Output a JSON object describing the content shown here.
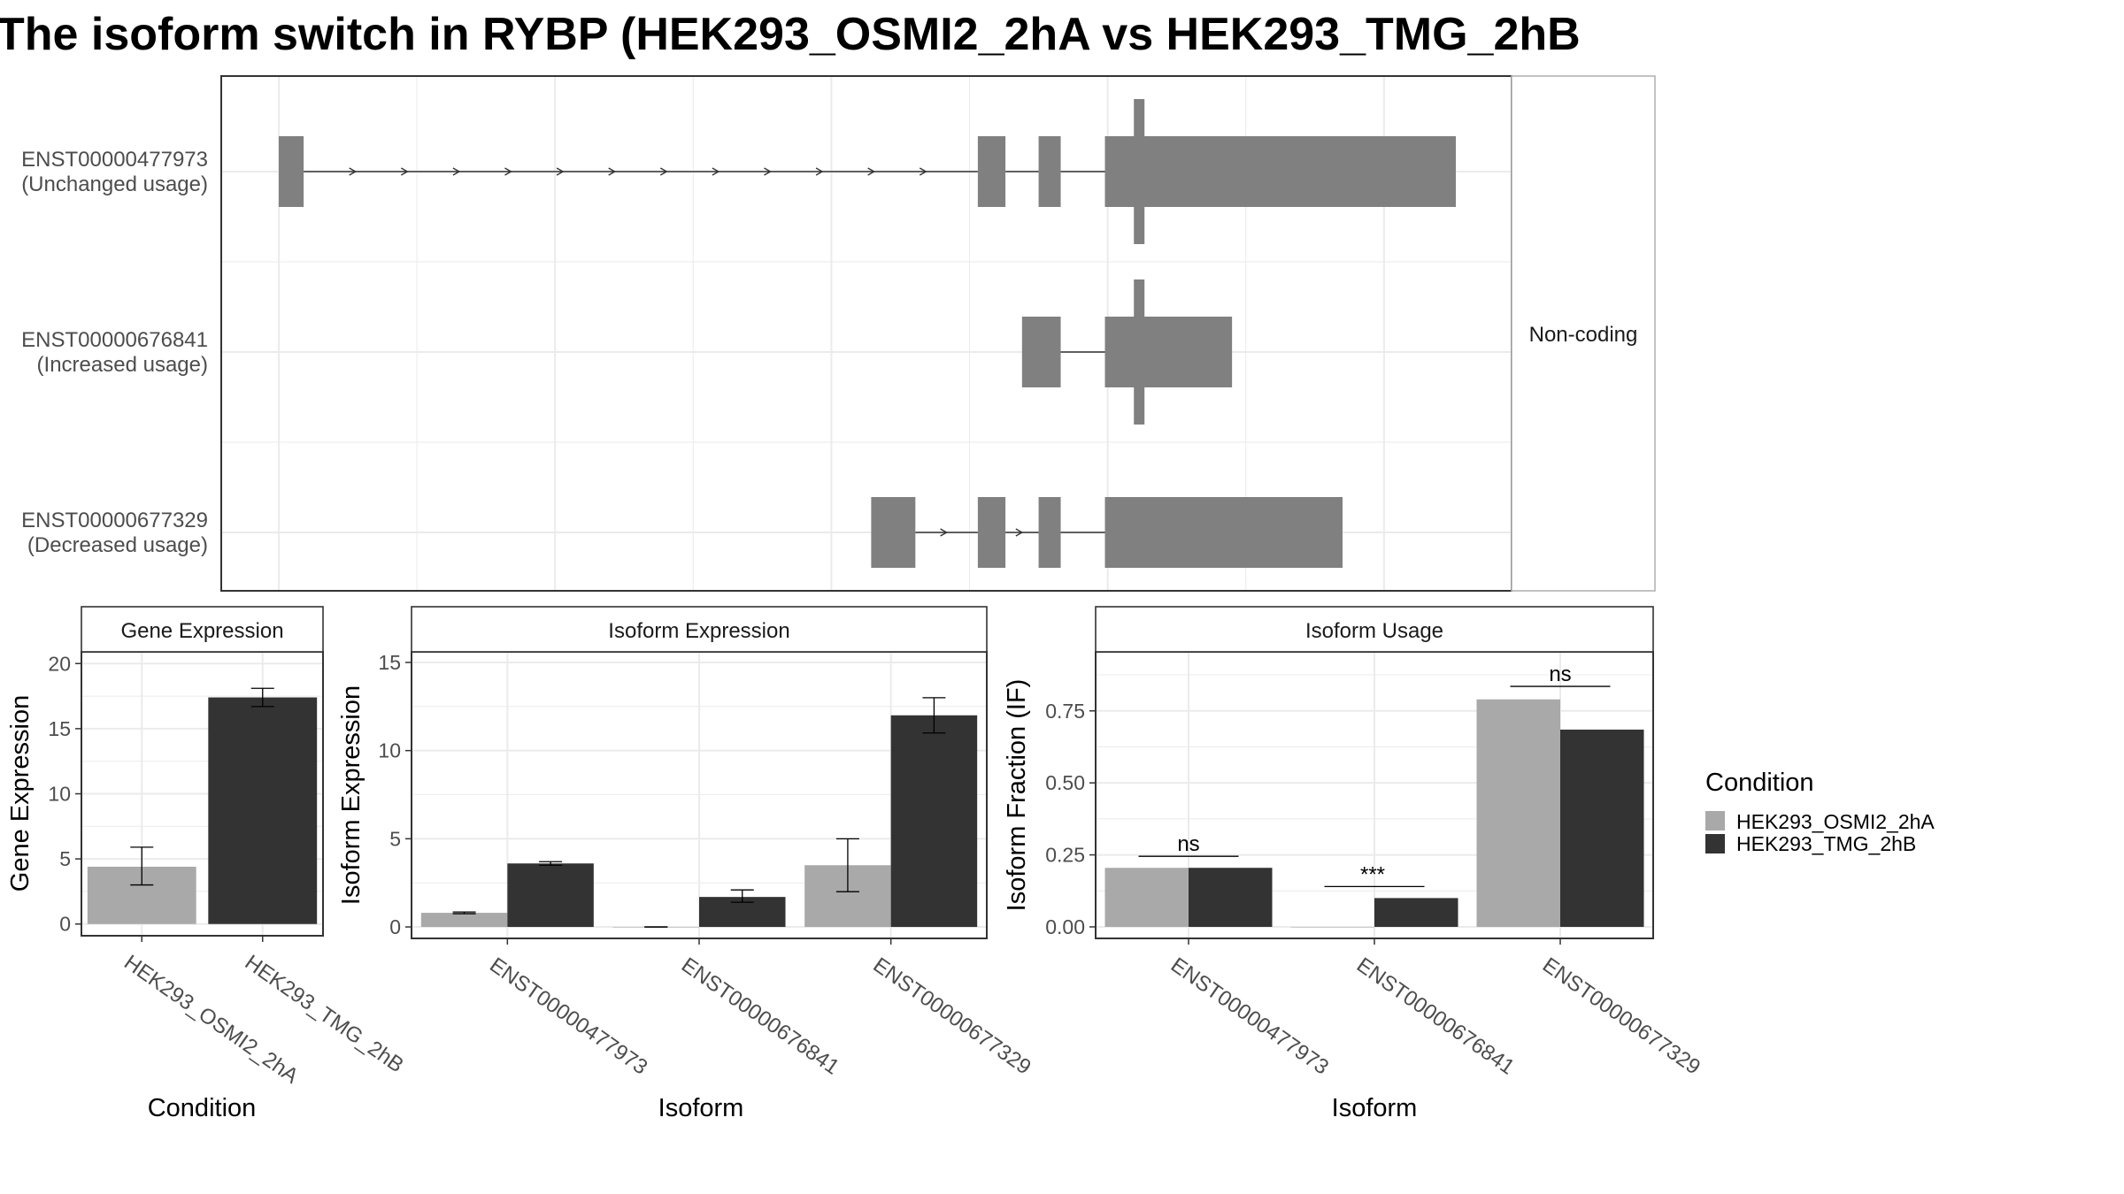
{
  "title": "The isoform switch in RYBP (HEK293_OSMI2_2hA vs HEK293_TMG_2hB",
  "colors": {
    "osmi": "#a9a9a9",
    "tmg": "#333333",
    "exon": "#808080",
    "grid": "#ebebeb",
    "axis_text": "#4d4d4d",
    "panel_border": "#333333",
    "strip_border": "#b3b3b3"
  },
  "legend": {
    "title": "Condition",
    "items": [
      {
        "label": "HEK293_OSMI2_2hA",
        "color": "#a9a9a9"
      },
      {
        "label": "HEK293_TMG_2hB",
        "color": "#333333"
      }
    ]
  },
  "chart_data": [
    {
      "type": "gene-structure",
      "facet_label": "Non-coding",
      "transcripts": [
        {
          "id": "ENST00000477973",
          "usage": "(Unchanged usage)",
          "exons": [
            [
              0,
              45
            ],
            [
              1265,
              1315
            ],
            [
              1375,
              1415
            ],
            [
              1495,
              2130
            ]
          ],
          "arrows_in_intron": 1
        },
        {
          "id": "ENST00000676841",
          "usage": "(Increased usage)",
          "exons": [
            [
              1345,
              1415
            ],
            [
              1495,
              1725
            ]
          ],
          "arrows_in_intron": 0
        },
        {
          "id": "ENST00000677329",
          "usage": "(Decreased usage)",
          "exons": [
            [
              1072,
              1152
            ],
            [
              1265,
              1315
            ],
            [
              1375,
              1415
            ],
            [
              1495,
              1925
            ]
          ],
          "arrows_in_intron": 2
        }
      ],
      "marker_position": 1557
    },
    {
      "type": "bar",
      "strip": "Gene Expression",
      "xlabel": "Condition",
      "ylabel": "Gene Expression",
      "ylim": [
        -0.9,
        20.9
      ],
      "yticks": [
        "0",
        "5",
        "10",
        "15",
        "20"
      ],
      "categories": [
        "HEK293_OSMI2_2hA",
        "HEK293_TMG_2hB"
      ],
      "series": [
        {
          "name": "Gene Expression",
          "values": [
            4.4,
            17.4
          ],
          "errors": [
            [
              3.0,
              5.9
            ],
            [
              16.7,
              18.1
            ]
          ],
          "colors": [
            "#a9a9a9",
            "#333333"
          ]
        }
      ]
    },
    {
      "type": "bar",
      "strip": "Isoform Expression",
      "xlabel": "Isoform",
      "ylabel": "Isoform Expression",
      "ylim": [
        -0.65,
        15.6
      ],
      "yticks": [
        "0",
        "5",
        "10",
        "15"
      ],
      "categories": [
        "ENST00000477973",
        "ENST00000676841",
        "ENST00000677329"
      ],
      "series": [
        {
          "name": "HEK293_OSMI2_2hA",
          "values": [
            0.8,
            0.0,
            3.5
          ],
          "errors": [
            [
              0.75,
              0.85
            ],
            [
              0.0,
              0.0
            ],
            [
              2.0,
              5.0
            ]
          ]
        },
        {
          "name": "HEK293_TMG_2hB",
          "values": [
            3.6,
            1.7,
            12.0
          ],
          "errors": [
            [
              3.5,
              3.7
            ],
            [
              1.4,
              2.1
            ],
            [
              11.0,
              13.0
            ]
          ]
        }
      ]
    },
    {
      "type": "bar",
      "strip": "Isoform Usage",
      "xlabel": "Isoform",
      "ylabel": "Isoform Fraction (IF)",
      "ylim": [
        -0.04,
        0.955
      ],
      "yticks": [
        "0.00",
        "0.25",
        "0.50",
        "0.75"
      ],
      "categories": [
        "ENST00000477973",
        "ENST00000676841",
        "ENST00000677329"
      ],
      "series": [
        {
          "name": "HEK293_OSMI2_2hA",
          "values": [
            0.205,
            0.0,
            0.79
          ]
        },
        {
          "name": "HEK293_TMG_2hB",
          "values": [
            0.205,
            0.1,
            0.685
          ]
        }
      ],
      "annotations": [
        {
          "category": "ENST00000477973",
          "label": "ns",
          "y": 0.245
        },
        {
          "category": "ENST00000676841",
          "label": "***",
          "y": 0.14
        },
        {
          "category": "ENST00000677329",
          "label": "ns",
          "y": 0.835
        }
      ]
    }
  ]
}
